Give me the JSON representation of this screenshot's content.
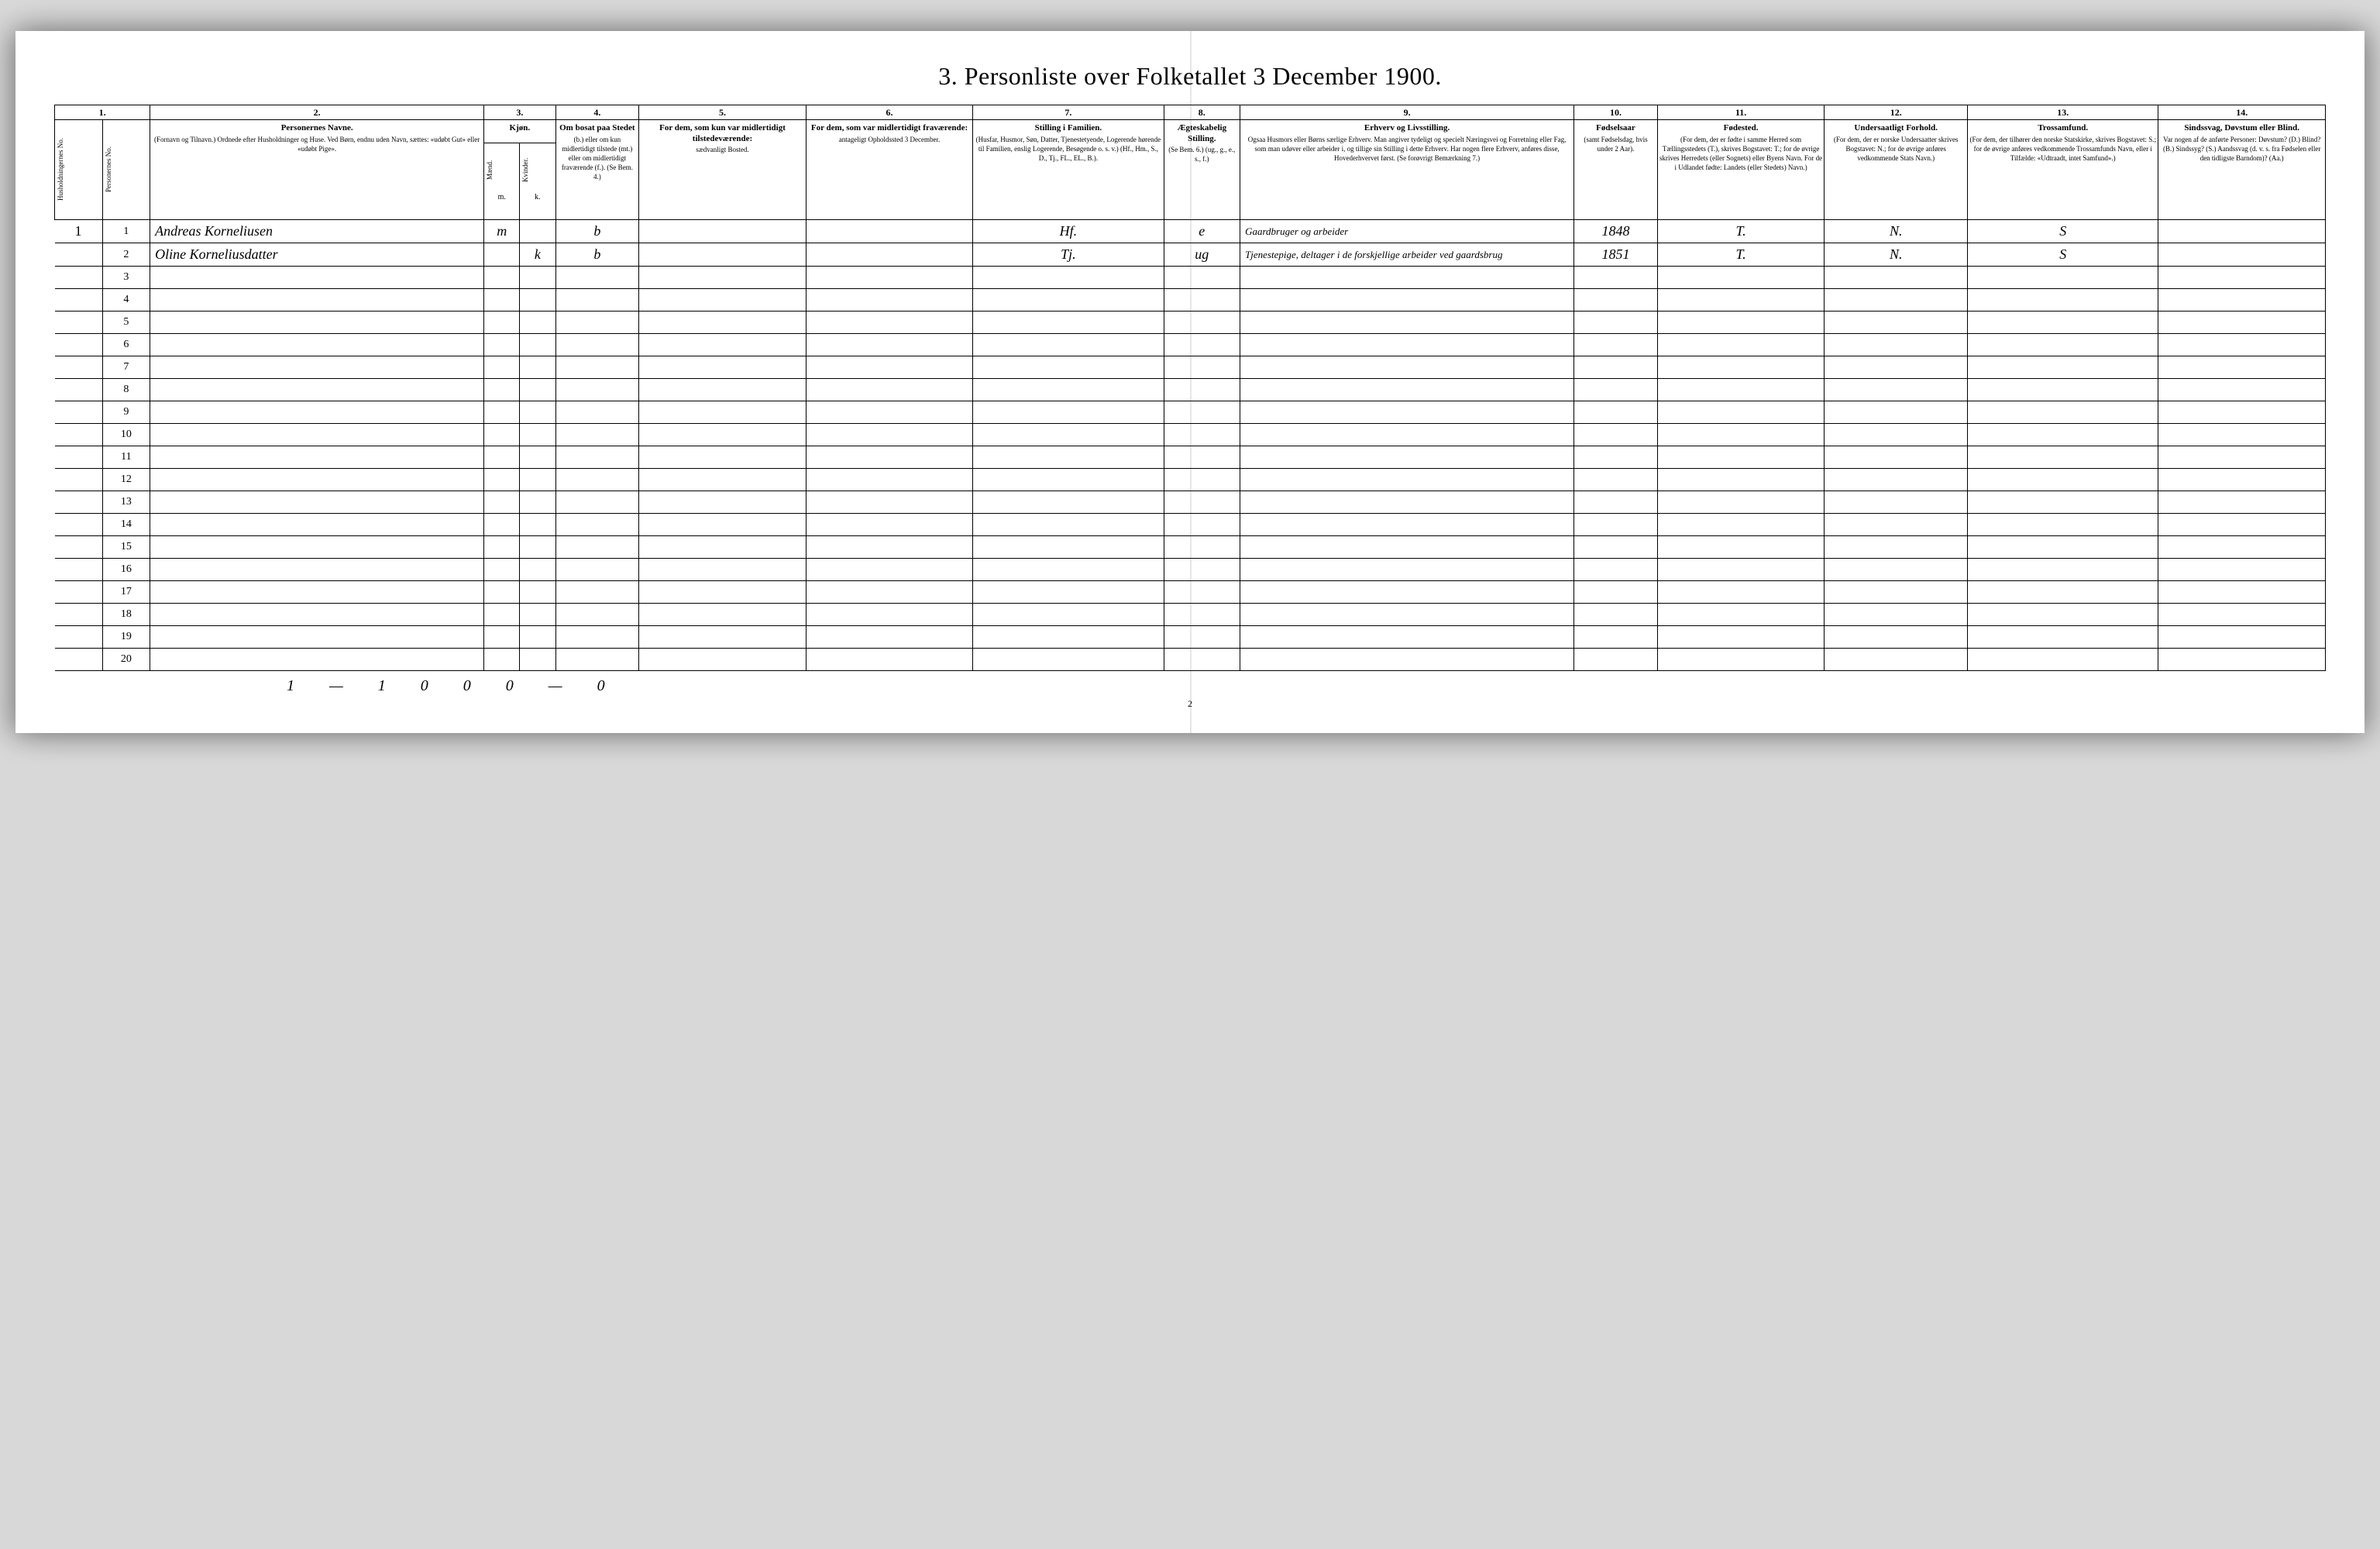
{
  "title": "3. Personliste over Folketallet 3 December 1900.",
  "colnums": [
    "1.",
    "2.",
    "3.",
    "4.",
    "5.",
    "6.",
    "7.",
    "8.",
    "9.",
    "10.",
    "11.",
    "12.",
    "13.",
    "14."
  ],
  "headers": {
    "h1a": "Husholdningernes No.",
    "h1b": "Personernes No.",
    "h2_title": "Personernes Navne.",
    "h2_desc": "(Fornavn og Tilnavn.) Ordnede efter Husholdninger og Huse. Ved Børn, endnu uden Navn, sættes: «udøbt Gut» eller «udøbt Pige».",
    "h3_title": "Kjøn.",
    "h3_m": "Mænd.",
    "h3_k": "Kvinder.",
    "h3_m_abbr": "m.",
    "h3_k_abbr": "k.",
    "h4_title": "Om bosat paa Stedet",
    "h4_desc": "(b.) eller om kun midlertidigt tilstede (mt.) eller om midlertidigt fraværende (f.). (Se Bem. 4.)",
    "h5_title": "For dem, som kun var midlertidigt tilstedeværende:",
    "h5_desc": "sædvanligt Bosted.",
    "h6_title": "For dem, som var midlertidigt fraværende:",
    "h6_desc": "antageligt Opholdssted 3 December.",
    "h7_title": "Stilling i Familien.",
    "h7_desc": "(Husfar, Husmor, Søn, Datter, Tjenestetyende, Logerende hørende til Familien, enslig Logerende, Besøgende o. s. v.) (Hf., Hm., S., D., Tj., FL., EL., B.).",
    "h8_title": "Ægteskabelig Stilling.",
    "h8_desc": "(Se Bem. 6.) (ug., g., e., s., f.)",
    "h9_title": "Erhverv og Livsstilling.",
    "h9_desc": "Ogsaa Husmors eller Børns særlige Erhverv. Man angiver tydeligt og specielt Næringsvei og Forretning eller Fag, som man udøver eller arbeider i, og tillige sin Stilling i dette Erhverv. Har nogen flere Erhverv, anføres disse, Hovederhvervet først. (Se forøvrigt Bemærkning 7.)",
    "h10_title": "Fødselsaar",
    "h10_desc": "(samt Fødselsdag, hvis under 2 Aar).",
    "h11_title": "Fødested.",
    "h11_desc": "(For dem, der er fødte i samme Herred som Tællingsstedets (T.), skrives Bogstavet: T.; for de øvrige skrives Herredets (eller Sognets) eller Byens Navn. For de i Udlandet fødte: Landets (eller Stedets) Navn.)",
    "h12_title": "Undersaatligt Forhold.",
    "h12_desc": "(For dem, der er norske Undersaatter skrives Bogstavet: N.; for de øvrige anføres vedkommende Stats Navn.)",
    "h13_title": "Trossamfund.",
    "h13_desc": "(For dem, der tilhører den norske Statskirke, skrives Bogstavet: S.; for de øvrige anføres vedkommende Trossamfunds Navn, eller i Tilfælde: «Udtraadt, intet Samfund».)",
    "h14_title": "Sindssvag, Døvstum eller Blind.",
    "h14_desc": "Var nogen af de anførte Personer: Døvstum? (D.) Blind? (B.) Sindssyg? (S.) Aandssvag (d. v. s. fra Fødselen eller den tidligste Barndom)? (Aa.)"
  },
  "rows": [
    {
      "margin": "1",
      "num": "1",
      "name": "Andreas Korneliusen",
      "m": "m",
      "k": "",
      "bosat": "b",
      "c5": "",
      "c6": "",
      "stilling": "Hf.",
      "aegte": "e",
      "erhverv": "Gaardbruger og arbeider",
      "aar": "1848",
      "fodested": "T.",
      "forhold": "N.",
      "tros": "S",
      "c14": ""
    },
    {
      "margin": "",
      "num": "2",
      "name": "Oline Korneliusdatter",
      "m": "",
      "k": "k",
      "bosat": "b",
      "c5": "",
      "c6": "",
      "stilling": "Tj.",
      "aegte": "ug",
      "erhverv": "Tjenestepige, deltager i de forskjellige arbeider ved gaardsbrug",
      "aar": "1851",
      "fodested": "T.",
      "forhold": "N.",
      "tros": "S",
      "c14": ""
    },
    {
      "margin": "",
      "num": "3"
    },
    {
      "margin": "",
      "num": "4"
    },
    {
      "margin": "",
      "num": "5"
    },
    {
      "margin": "",
      "num": "6"
    },
    {
      "margin": "",
      "num": "7"
    },
    {
      "margin": "",
      "num": "8"
    },
    {
      "margin": "",
      "num": "9"
    },
    {
      "margin": "",
      "num": "10"
    },
    {
      "margin": "",
      "num": "11"
    },
    {
      "margin": "",
      "num": "12"
    },
    {
      "margin": "",
      "num": "13"
    },
    {
      "margin": "",
      "num": "14"
    },
    {
      "margin": "",
      "num": "15"
    },
    {
      "margin": "",
      "num": "16"
    },
    {
      "margin": "",
      "num": "17"
    },
    {
      "margin": "",
      "num": "18"
    },
    {
      "margin": "",
      "num": "19"
    },
    {
      "margin": "",
      "num": "20"
    }
  ],
  "footer_tally": "1 — 1   0   0   0   — 0",
  "page_num": "2"
}
